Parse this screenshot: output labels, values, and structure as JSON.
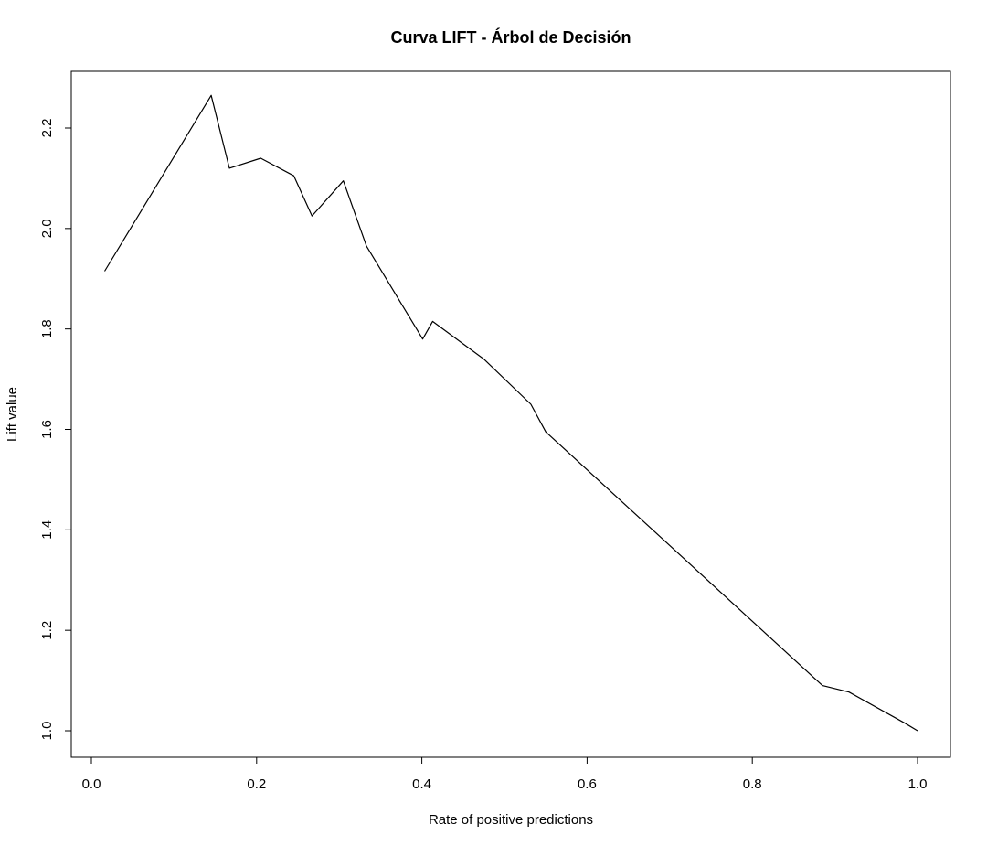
{
  "chart_data": {
    "type": "line",
    "title": "Curva LIFT - Árbol de Decisión",
    "xlabel": "Rate of positive predictions",
    "ylabel": "Lift value",
    "xlim": [
      0.0,
      1.0
    ],
    "ylim": [
      1.0,
      2.27
    ],
    "x_ticks": [
      "0.0",
      "0.2",
      "0.4",
      "0.6",
      "0.8",
      "1.0"
    ],
    "y_ticks": [
      "1.0",
      "1.2",
      "1.4",
      "1.6",
      "1.8",
      "2.0",
      "2.2"
    ],
    "grid": false,
    "legend": "none",
    "series": [
      {
        "color": "#000000",
        "x": [
          0.016,
          0.145,
          0.167,
          0.205,
          0.245,
          0.267,
          0.305,
          0.333,
          0.401,
          0.413,
          0.475,
          0.532,
          0.55,
          0.885,
          0.917,
          0.985,
          1.0
        ],
        "y": [
          1.915,
          2.265,
          2.12,
          2.14,
          2.105,
          2.025,
          2.095,
          1.965,
          1.78,
          1.815,
          1.74,
          1.65,
          1.595,
          1.09,
          1.077,
          1.015,
          1.0
        ]
      }
    ]
  }
}
